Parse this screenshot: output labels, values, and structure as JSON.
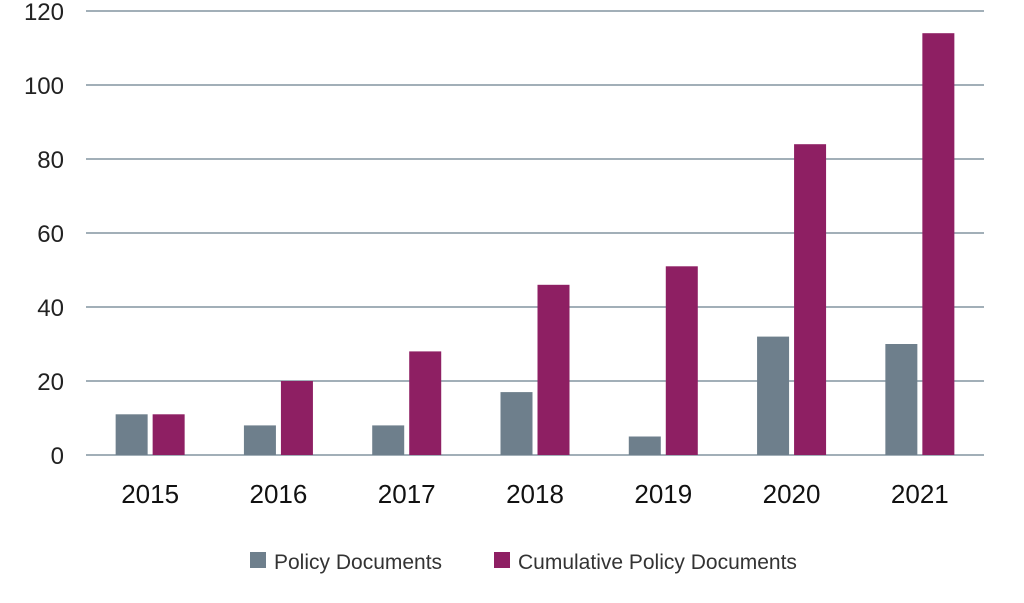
{
  "chart_data": {
    "type": "bar",
    "categories": [
      "2015",
      "2016",
      "2017",
      "2018",
      "2019",
      "2020",
      "2021"
    ],
    "series": [
      {
        "name": "Policy Documents",
        "color": "#6e7f8c",
        "values": [
          11,
          8,
          8,
          17,
          5,
          32,
          30
        ]
      },
      {
        "name": "Cumulative Policy Documents",
        "color": "#8e1f63",
        "values": [
          11,
          20,
          28,
          46,
          51,
          84,
          114
        ]
      }
    ],
    "ylim": [
      0,
      120
    ],
    "yticks": [
      "0",
      "20",
      "40",
      "60",
      "80",
      "100",
      "120"
    ],
    "grid": true,
    "legend": "bottom-center"
  }
}
